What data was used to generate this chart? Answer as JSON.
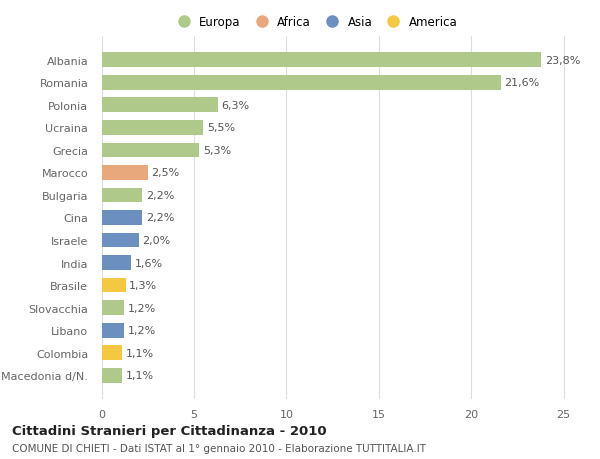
{
  "countries": [
    "Albania",
    "Romania",
    "Polonia",
    "Ucraina",
    "Grecia",
    "Marocco",
    "Bulgaria",
    "Cina",
    "Israele",
    "India",
    "Brasile",
    "Slovacchia",
    "Libano",
    "Colombia",
    "Macedonia d/N."
  ],
  "values": [
    23.8,
    21.6,
    6.3,
    5.5,
    5.3,
    2.5,
    2.2,
    2.2,
    2.0,
    1.6,
    1.3,
    1.2,
    1.2,
    1.1,
    1.1
  ],
  "labels": [
    "23,8%",
    "21,6%",
    "6,3%",
    "5,5%",
    "5,3%",
    "2,5%",
    "2,2%",
    "2,2%",
    "2,0%",
    "1,6%",
    "1,3%",
    "1,2%",
    "1,2%",
    "1,1%",
    "1,1%"
  ],
  "continent": [
    "Europa",
    "Europa",
    "Europa",
    "Europa",
    "Europa",
    "Africa",
    "Europa",
    "Asia",
    "Asia",
    "Asia",
    "America",
    "Europa",
    "Asia",
    "America",
    "Europa"
  ],
  "colors": {
    "Europa": "#aec98a",
    "Africa": "#e8a87c",
    "Asia": "#6b8fbf",
    "America": "#f5c842"
  },
  "legend_entries": [
    "Europa",
    "Africa",
    "Asia",
    "America"
  ],
  "legend_colors": [
    "#aec98a",
    "#e8a87c",
    "#6b8fbf",
    "#f5c842"
  ],
  "title": "Cittadini Stranieri per Cittadinanza - 2010",
  "subtitle": "COMUNE DI CHIETI - Dati ISTAT al 1° gennaio 2010 - Elaborazione TUTTITALIA.IT",
  "xlim": [
    -0.3,
    26
  ],
  "xticks": [
    0,
    5,
    10,
    15,
    20,
    25
  ],
  "bg_color": "#ffffff",
  "grid_color": "#dddddd",
  "bar_height": 0.65,
  "label_fontsize": 8,
  "tick_fontsize": 8,
  "label_color": "#555555",
  "tick_color": "#666666"
}
